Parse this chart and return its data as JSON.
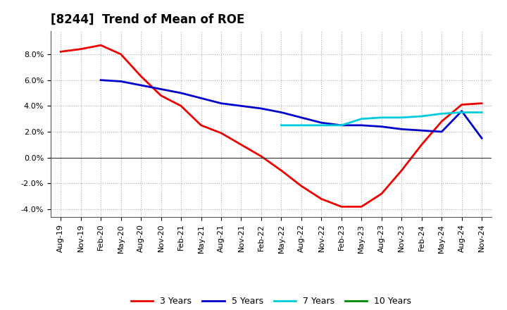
{
  "title": "[8244]  Trend of Mean of ROE",
  "background_color": "#ffffff",
  "grid_color": "#aaaaaa",
  "title_fontsize": 12,
  "tick_fontsize": 8,
  "x_labels": [
    "Aug-19",
    "Nov-19",
    "Feb-20",
    "May-20",
    "Aug-20",
    "Nov-20",
    "Feb-21",
    "May-21",
    "Aug-21",
    "Nov-21",
    "Feb-22",
    "May-22",
    "Aug-22",
    "Nov-22",
    "Feb-23",
    "May-23",
    "Aug-23",
    "Nov-23",
    "Feb-24",
    "May-24",
    "Aug-24",
    "Nov-24"
  ],
  "ylim": [
    -0.046,
    0.098
  ],
  "yticks": [
    -0.04,
    -0.02,
    0.0,
    0.02,
    0.04,
    0.06,
    0.08
  ],
  "y_3yr": [
    0.082,
    0.084,
    0.087,
    0.08,
    0.063,
    0.048,
    0.04,
    0.025,
    0.019,
    0.01,
    0.001,
    -0.01,
    -0.022,
    -0.032,
    -0.038,
    -0.038,
    -0.028,
    -0.01,
    0.01,
    0.028,
    0.041,
    0.042
  ],
  "y_5yr": [
    null,
    null,
    0.06,
    0.059,
    0.056,
    0.053,
    0.05,
    0.046,
    0.042,
    0.04,
    0.038,
    0.035,
    0.031,
    0.027,
    0.025,
    0.025,
    0.024,
    0.022,
    0.021,
    0.02,
    0.036,
    0.015
  ],
  "y_7yr": [
    null,
    null,
    null,
    null,
    null,
    null,
    null,
    null,
    null,
    null,
    null,
    0.025,
    0.025,
    0.025,
    0.025,
    0.03,
    0.031,
    0.031,
    0.032,
    0.034,
    0.035,
    0.035
  ],
  "y_10yr": [
    null,
    null,
    null,
    null,
    null,
    null,
    null,
    null,
    null,
    null,
    null,
    null,
    null,
    null,
    null,
    null,
    null,
    null,
    null,
    null,
    null,
    null
  ],
  "color_3yr": "#ee0000",
  "color_5yr": "#0000cc",
  "color_7yr": "#00ccdd",
  "color_10yr": "#008800",
  "label_3yr": "3 Years",
  "label_5yr": "5 Years",
  "label_7yr": "7 Years",
  "label_10yr": "10 Years"
}
